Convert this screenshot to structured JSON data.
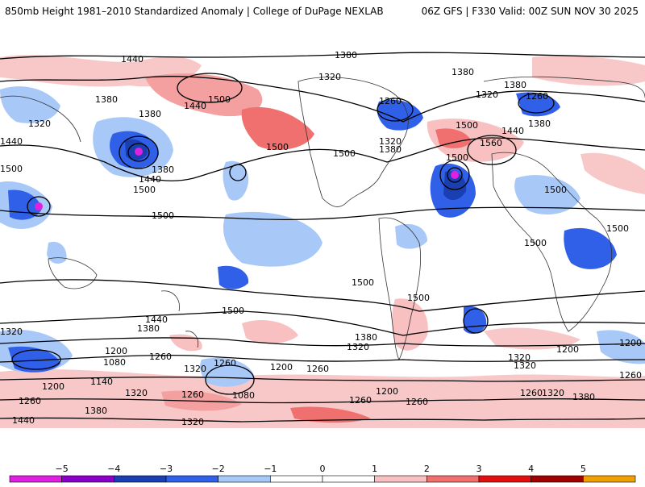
{
  "header": {
    "title": "850mb Height 1981–2010 Standardized Anomaly | College of DuPage NEXLAB",
    "run_info": "06Z GFS | F330 Valid: 00Z SUN NOV 30 2025"
  },
  "contour_labels": [
    "1440",
    "1380",
    "1320",
    "1380",
    "1440",
    "1500",
    "1500",
    "1500",
    "1380",
    "1320",
    "1260",
    "1380",
    "1320",
    "1380",
    "1260",
    "1380",
    "1440",
    "1500",
    "1560",
    "1320",
    "1500",
    "1500",
    "1500",
    "1500",
    "1500",
    "1500",
    "1440",
    "1380",
    "1500",
    "1380",
    "1440",
    "1500",
    "1500",
    "1500",
    "1320",
    "1440",
    "1380",
    "1320",
    "1320",
    "1260",
    "1200",
    "1200",
    "1080",
    "1140",
    "1200",
    "1200",
    "1260",
    "1320",
    "1260",
    "1200",
    "1260",
    "1260",
    "1080",
    "1320",
    "1260",
    "1200",
    "1260",
    "1260",
    "1320",
    "1380",
    "1320",
    "1380",
    "1440",
    "1260",
    "1380",
    "1320"
  ],
  "legend": {
    "ticks": [
      "−5",
      "−4",
      "−3",
      "−2",
      "−1",
      "0",
      "1",
      "2",
      "3",
      "4",
      "5"
    ],
    "colors": [
      "#e020e0",
      "#8a00c8",
      "#1a3fb0",
      "#3060e8",
      "#a8c8f8",
      "#ffffff",
      "#ffffff",
      "#f8c0c0",
      "#f07070",
      "#e01010",
      "#a00000",
      "#f0a000"
    ]
  }
}
